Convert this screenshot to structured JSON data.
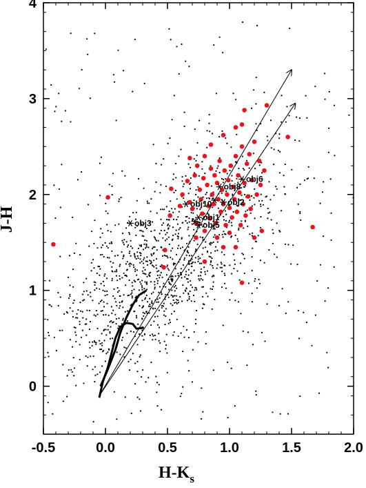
{
  "chart_data": {
    "type": "scatter",
    "title": "",
    "xlabel": "H-K",
    "xlabel_sub": "s",
    "ylabel": "J-H",
    "xlim": [
      -0.5,
      2.0
    ],
    "ylim": [
      -0.5,
      4.0
    ],
    "xticks": [
      -0.5,
      0.0,
      0.5,
      1.0,
      1.5,
      2.0
    ],
    "xtick_labels": [
      "-0.5",
      "0.0",
      "0.5",
      "1.0",
      "1.5",
      "2.0"
    ],
    "yticks": [
      0,
      1,
      2,
      3,
      4
    ],
    "ytick_labels": [
      "0",
      "1",
      "2",
      "3",
      "4"
    ],
    "colors": {
      "field": "#000000",
      "yso": "#e8141c",
      "track": "#000000"
    },
    "red_points": [
      [
        -0.42,
        1.48
      ],
      [
        0.02,
        1.97
      ],
      [
        0.47,
        1.24
      ],
      [
        0.48,
        1.42
      ],
      [
        0.52,
        1.78
      ],
      [
        0.53,
        2.06
      ],
      [
        0.6,
        1.88
      ],
      [
        0.62,
        2.0
      ],
      [
        0.66,
        2.14
      ],
      [
        0.68,
        1.92
      ],
      [
        0.7,
        1.85
      ],
      [
        0.72,
        2.2
      ],
      [
        0.73,
        1.7
      ],
      [
        0.74,
        2.3
      ],
      [
        0.76,
        2.05
      ],
      [
        0.77,
        1.95
      ],
      [
        0.78,
        1.8
      ],
      [
        0.79,
        2.17
      ],
      [
        0.8,
        2.4
      ],
      [
        0.8,
        1.62
      ],
      [
        0.82,
        2.1
      ],
      [
        0.83,
        1.88
      ],
      [
        0.84,
        1.75
      ],
      [
        0.85,
        2.27
      ],
      [
        0.86,
        2.0
      ],
      [
        0.87,
        1.9
      ],
      [
        0.88,
        2.2
      ],
      [
        0.89,
        1.7
      ],
      [
        0.9,
        2.12
      ],
      [
        0.91,
        1.95
      ],
      [
        0.92,
        2.35
      ],
      [
        0.93,
        1.82
      ],
      [
        0.94,
        2.05
      ],
      [
        0.95,
        1.9
      ],
      [
        0.96,
        2.25
      ],
      [
        0.97,
        1.68
      ],
      [
        0.98,
        2.0
      ],
      [
        0.99,
        2.15
      ],
      [
        1.0,
        1.86
      ],
      [
        1.01,
        2.3
      ],
      [
        1.02,
        1.76
      ],
      [
        1.03,
        2.08
      ],
      [
        1.04,
        1.95
      ],
      [
        1.05,
        2.4
      ],
      [
        1.06,
        1.82
      ],
      [
        1.07,
        2.2
      ],
      [
        1.08,
        2.02
      ],
      [
        1.09,
        1.68
      ],
      [
        1.1,
        2.5
      ],
      [
        1.11,
        1.9
      ],
      [
        1.12,
        2.12
      ],
      [
        1.13,
        1.78
      ],
      [
        1.14,
        2.32
      ],
      [
        1.15,
        1.98
      ],
      [
        1.16,
        2.42
      ],
      [
        1.17,
        1.85
      ],
      [
        1.18,
        2.15
      ],
      [
        1.2,
        2.55
      ],
      [
        1.22,
        2.0
      ],
      [
        1.24,
        2.35
      ],
      [
        1.26,
        1.62
      ],
      [
        1.28,
        2.25
      ],
      [
        1.1,
        2.73
      ],
      [
        1.12,
        2.88
      ],
      [
        1.3,
        2.93
      ],
      [
        1.47,
        2.6
      ],
      [
        1.67,
        1.66
      ],
      [
        1.1,
        1.08
      ],
      [
        0.8,
        1.3
      ],
      [
        0.95,
        1.45
      ],
      [
        1.0,
        1.6
      ],
      [
        0.9,
        1.55
      ],
      [
        1.2,
        1.55
      ],
      [
        0.73,
        1.55
      ],
      [
        1.05,
        1.45
      ],
      [
        0.85,
        2.52
      ],
      [
        0.95,
        2.62
      ],
      [
        1.05,
        2.7
      ],
      [
        1.25,
        2.1
      ],
      [
        0.68,
        2.38
      ]
    ],
    "star_points": [
      {
        "label": "obj6",
        "x": 1.1,
        "y": 2.16
      },
      {
        "label": "obj8",
        "x": 0.92,
        "y": 2.08
      },
      {
        "label": "obj2",
        "x": 0.95,
        "y": 1.92
      },
      {
        "label": "obj10",
        "x": 0.65,
        "y": 1.9
      },
      {
        "label": "obj1",
        "x": 0.75,
        "y": 1.76
      },
      {
        "label": "obj5",
        "x": 0.75,
        "y": 1.68
      },
      {
        "label": "obj3",
        "x": 0.2,
        "y": 1.7
      },
      {
        "label": "",
        "x": 0.72,
        "y": 1.72
      },
      {
        "label": "",
        "x": 0.88,
        "y": 1.94
      }
    ],
    "reddening_vectors": [
      {
        "from": [
          -0.05,
          -0.1
        ],
        "to": [
          1.5,
          3.3
        ]
      },
      {
        "from": [
          -0.05,
          -0.1
        ],
        "to": [
          1.53,
          2.95
        ]
      }
    ],
    "dwarf_track": [
      [
        -0.05,
        -0.12
      ],
      [
        -0.02,
        0.05
      ],
      [
        0.02,
        0.2
      ],
      [
        0.05,
        0.35
      ],
      [
        0.08,
        0.5
      ],
      [
        0.12,
        0.62
      ],
      [
        0.17,
        0.66
      ],
      [
        0.22,
        0.65
      ],
      [
        0.25,
        0.6
      ],
      [
        0.31,
        0.61
      ]
    ],
    "giant_track": [
      [
        -0.04,
        0.0
      ],
      [
        0.02,
        0.18
      ],
      [
        0.08,
        0.38
      ],
      [
        0.12,
        0.56
      ],
      [
        0.17,
        0.72
      ],
      [
        0.22,
        0.85
      ],
      [
        0.27,
        0.95
      ],
      [
        0.33,
        1.0
      ]
    ],
    "field_star_count": 1400,
    "field_star_center": [
      0.35,
      1.05
    ],
    "field_star_spread": [
      0.4,
      0.45
    ],
    "field_star_correlation": 0.45
  }
}
